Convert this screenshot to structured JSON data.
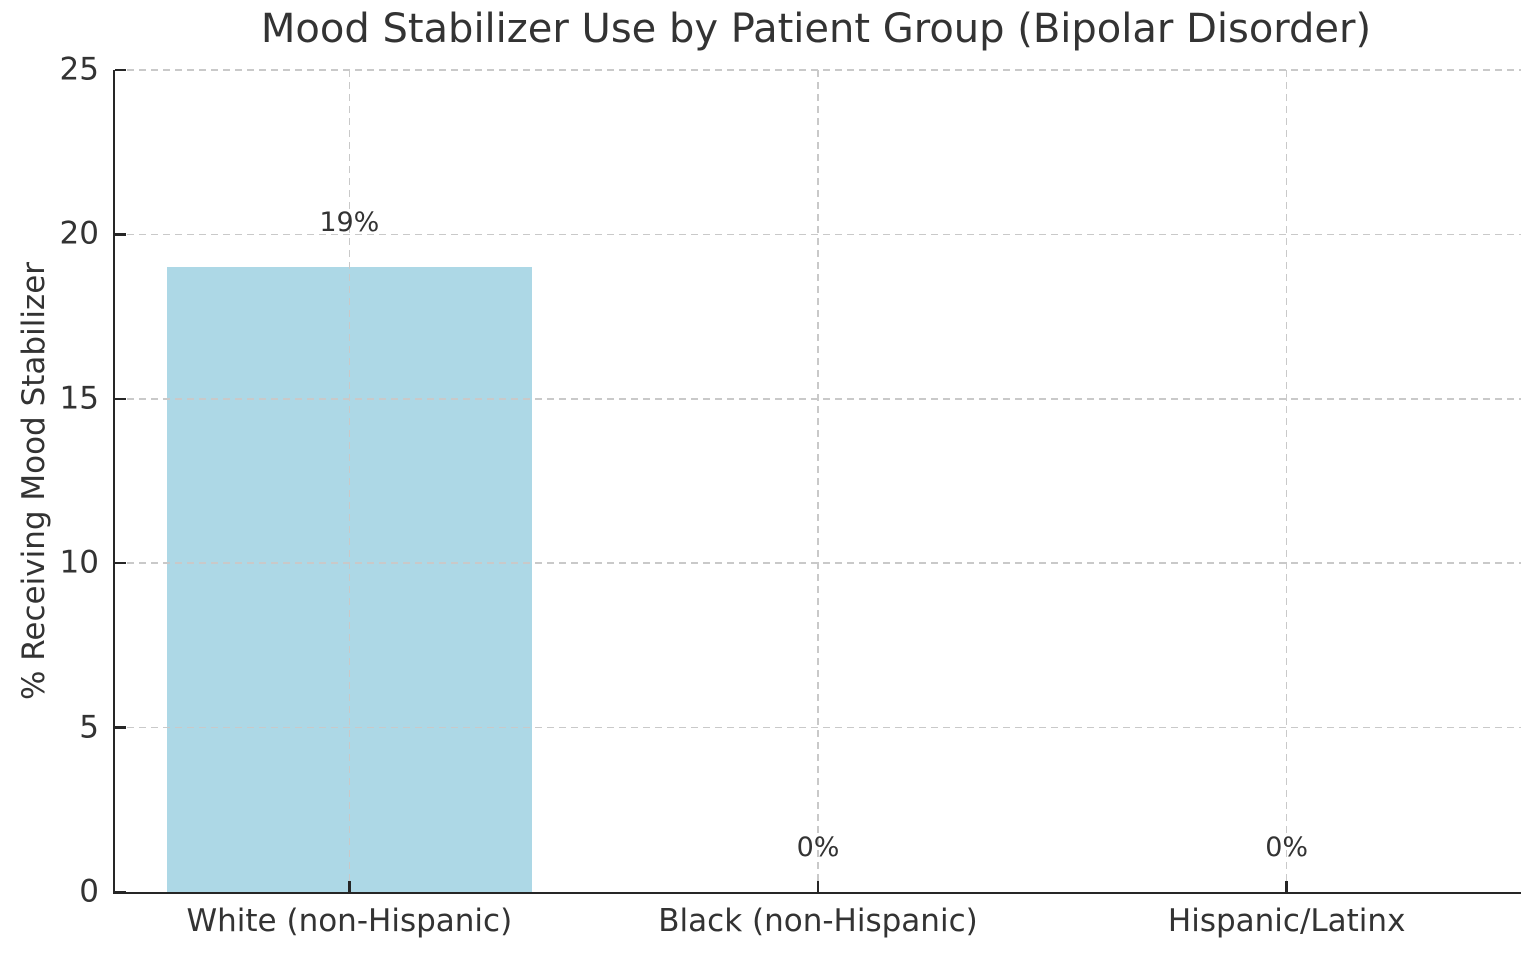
{
  "colors": {
    "bar": "#add8e6",
    "grid": "#c9c9c9",
    "spine": "#262626",
    "text": "#333333",
    "background": "#ffffff"
  },
  "chart_data": {
    "type": "bar",
    "title": "Mood Stabilizer Use by Patient Group (Bipolar Disorder)",
    "xlabel": "",
    "ylabel": "% Receiving Mood Stabilizer",
    "categories": [
      "White (non-Hispanic)",
      "Black (non-Hispanic)",
      "Hispanic/Latinx"
    ],
    "values": [
      19,
      0,
      0
    ],
    "bar_labels": [
      "19%",
      "0%",
      "0%"
    ],
    "ylim": [
      0,
      25
    ],
    "yticks": [
      0,
      5,
      10,
      15,
      20,
      25
    ],
    "grid": "dashed gray, horizontal at each ytick and vertical at each category center",
    "tick_direction": "in",
    "legend_position": "none",
    "bar_color": "#add8e6"
  }
}
